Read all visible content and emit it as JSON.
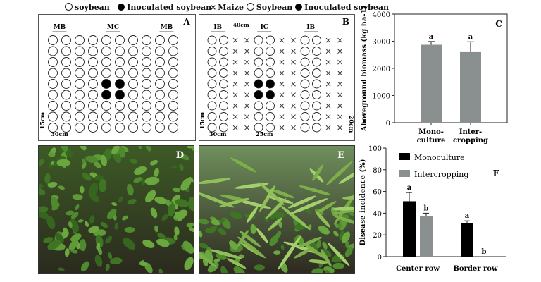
{
  "panel_a": {
    "legend": {
      "open_label": "soybean",
      "filled_label": "Inoculated soybean"
    },
    "letter": "A",
    "row_labels": [
      "MB",
      "MC",
      "MB"
    ],
    "spacing_row": "30cm",
    "spacing_col": "15cm",
    "grid": {
      "rows": 9,
      "cols": 10,
      "inoculated": [
        [
          4,
          4
        ],
        [
          4,
          5
        ],
        [
          5,
          4
        ],
        [
          5,
          5
        ]
      ]
    }
  },
  "panel_b": {
    "legend": {
      "x_label": "Maize",
      "open_label": "Soybean",
      "filled_label": "Inoculated soybean"
    },
    "letter": "B",
    "row_labels": [
      "IB",
      "IC",
      "IB"
    ],
    "spacing_top": "40cm",
    "spacing_left": "15cm",
    "spacing_bottom_a": "30cm",
    "spacing_bottom_b": "25cm",
    "spacing_right": "20cm",
    "column_pattern": [
      "o",
      "o",
      "x",
      "x",
      "o",
      "o",
      "x",
      "x",
      "o",
      "o",
      "x",
      "x"
    ],
    "rows": 9,
    "inoculated": [
      [
        4,
        4
      ],
      [
        4,
        5
      ],
      [
        5,
        4
      ],
      [
        5,
        5
      ]
    ]
  },
  "chart_data": [
    {
      "type": "bar",
      "panel": "C",
      "ylabel": "Aboveground biomass (kg ha-1)",
      "categories": [
        "Mono-\nculture",
        "Inter-\ncropping"
      ],
      "category_lines": [
        [
          "Mono-",
          "culture"
        ],
        [
          "Inter-",
          "cropping"
        ]
      ],
      "values": [
        2870,
        2600
      ],
      "errors": [
        120,
        380
      ],
      "significance": [
        "a",
        "a"
      ],
      "ylim": [
        0,
        4000
      ],
      "yticks": [
        0,
        1000,
        2000,
        3000,
        4000
      ],
      "bar_color": "#8a8f8f"
    },
    {
      "type": "bar",
      "panel": "F",
      "ylabel": "Disease incidence (%)",
      "categories": [
        "Center row",
        "Border row"
      ],
      "series": [
        {
          "name": "Monoculture",
          "color": "#000000",
          "values": [
            51,
            31
          ],
          "errors": [
            8,
            2
          ],
          "significance": [
            "a",
            "a"
          ]
        },
        {
          "name": "Intercropping",
          "color": "#8a8f8f",
          "values": [
            37,
            0
          ],
          "errors": [
            3,
            0
          ],
          "significance": [
            "b",
            "b"
          ]
        }
      ],
      "ylim": [
        0,
        100
      ],
      "yticks": [
        0,
        20,
        40,
        60,
        80,
        100
      ]
    }
  ],
  "photos": {
    "d_letter": "D",
    "e_letter": "E"
  }
}
